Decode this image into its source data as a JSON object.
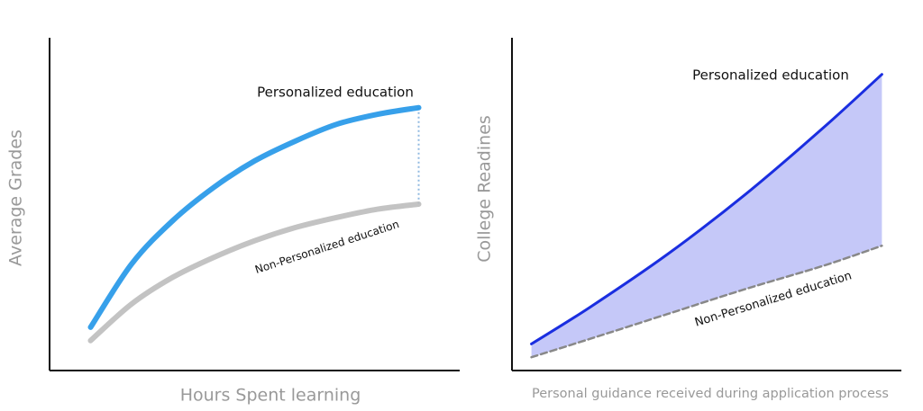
{
  "chart_data": [
    {
      "type": "line",
      "x_label": "Hours Spent learning",
      "y_label": "Average Grades",
      "x": [
        1,
        2,
        3,
        4,
        5,
        6,
        7,
        8,
        9
      ],
      "xlim": [
        0,
        10
      ],
      "ylim": [
        0,
        10
      ],
      "series": [
        {
          "name": "Personalized education",
          "color": "#2196e8",
          "values": [
            1.3,
            3.2,
            4.5,
            5.5,
            6.3,
            6.9,
            7.4,
            7.7,
            7.9
          ]
        },
        {
          "name": "Non-Personalized education",
          "color": "#bdbdbd",
          "values": [
            0.9,
            2.0,
            2.8,
            3.4,
            3.9,
            4.3,
            4.6,
            4.85,
            5.0
          ]
        }
      ],
      "gap_line": true
    },
    {
      "type": "area",
      "x_label": "Personal guidance received during application process",
      "y_label": "College Readines",
      "x": [
        0.5,
        2,
        4,
        6,
        8,
        9.5
      ],
      "xlim": [
        0,
        10
      ],
      "ylim": [
        0,
        10
      ],
      "series": [
        {
          "name": "Personalized education",
          "color": "#1a2ee0",
          "values": [
            0.8,
            1.9,
            3.5,
            5.3,
            7.3,
            8.9
          ]
        },
        {
          "name": "Non-Personalized education",
          "color": "#888888",
          "values": [
            0.4,
            0.95,
            1.7,
            2.45,
            3.15,
            3.75
          ],
          "dashed": true
        }
      ],
      "fill_color": "#c5c8f8"
    }
  ]
}
